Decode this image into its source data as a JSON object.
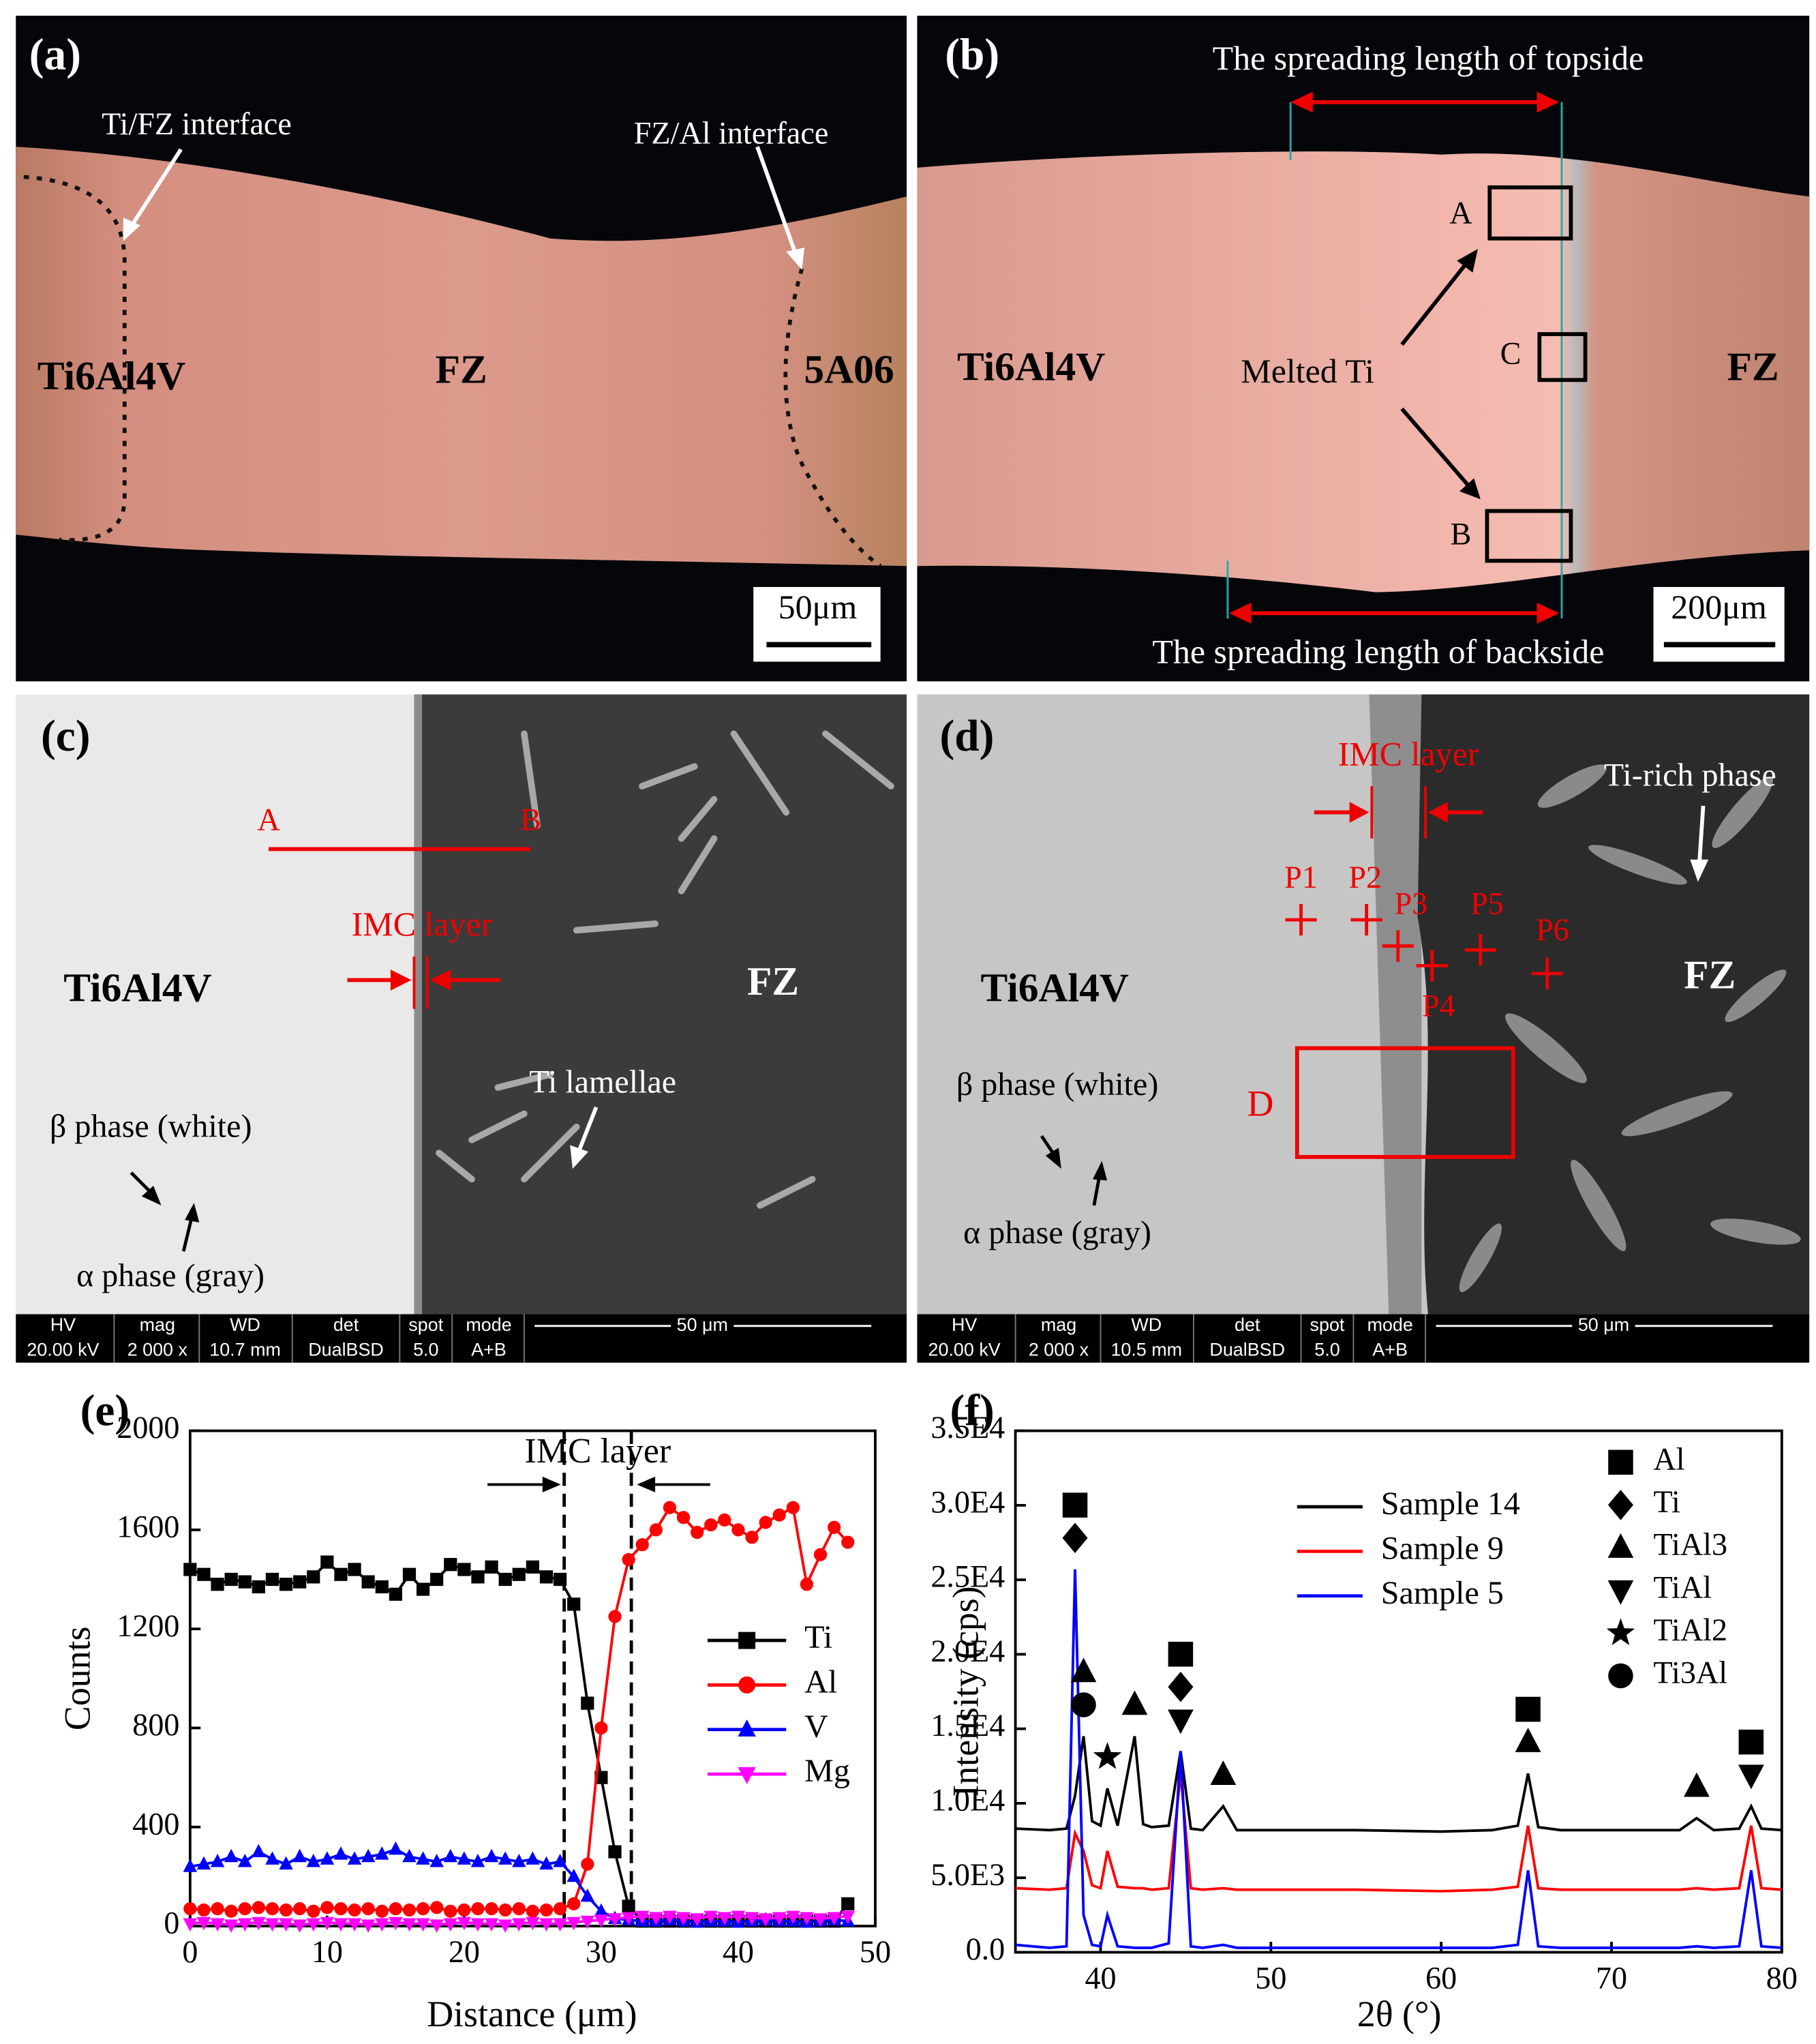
{
  "panels": {
    "a": {
      "label": "(a)",
      "annotations": [
        "Ti/FZ interface",
        "FZ/Al interface",
        "Ti6Al4V",
        "FZ",
        "5A06"
      ],
      "scale_bar": "50μm"
    },
    "b": {
      "label": "(b)",
      "annotations": [
        "The spreading length of topside",
        "A",
        "Melted Ti",
        "C",
        "B",
        "Ti6Al4V",
        "FZ",
        "The spreading length of backside"
      ],
      "scale_bar": "200μm"
    },
    "c": {
      "label": "(c)",
      "annotations": [
        "A",
        "B",
        "IMC layer",
        "Ti6Al4V",
        "FZ",
        "Ti lamellae",
        "β phase (white)",
        "α phase (gray)"
      ],
      "info_bar": {
        "headers": [
          "HV",
          "mag",
          "WD",
          "det",
          "spot",
          "mode"
        ],
        "values": [
          "20.00 kV",
          "2 000 x",
          "10.7 mm",
          "DualBSD",
          "5.0",
          "A+B"
        ],
        "scale": "50 μm"
      }
    },
    "d": {
      "label": "(d)",
      "annotations": [
        "IMC layer",
        "Ti-rich phase",
        "P1",
        "P2",
        "P3",
        "P5",
        "P6",
        "P4",
        "Ti6Al4V",
        "FZ",
        "D",
        "β phase (white)",
        "α phase (gray)"
      ],
      "info_bar": {
        "headers": [
          "HV",
          "mag",
          "WD",
          "det",
          "spot",
          "mode"
        ],
        "values": [
          "20.00 kV",
          "2 000 x",
          "10.5 mm",
          "DualBSD",
          "5.0",
          "A+B"
        ],
        "scale": "50 μm"
      }
    }
  },
  "chart_data": [
    {
      "type": "line",
      "panel_label": "(e)",
      "x_label": "Distance (μm)",
      "y_label": "Counts",
      "annotation": "IMC layer",
      "vlines": [
        27.3,
        32.2
      ],
      "xlim": [
        0,
        50
      ],
      "xticks": [
        0,
        10,
        20,
        30,
        40,
        50
      ],
      "ylim": [
        0,
        2000
      ],
      "yticks": [
        0,
        400,
        800,
        1200,
        1600,
        2000
      ],
      "grid": false,
      "x": [
        0,
        1,
        2,
        3,
        4,
        5,
        6,
        7,
        8,
        9,
        10,
        11,
        12,
        13,
        14,
        15,
        16,
        17,
        18,
        19,
        20,
        21,
        22,
        23,
        24,
        25,
        26,
        27,
        28,
        29,
        30,
        31,
        32,
        33,
        34,
        35,
        36,
        37,
        38,
        39,
        40,
        41,
        42,
        43,
        44,
        45,
        46,
        47,
        48
      ],
      "series": [
        {
          "name": "Ti",
          "color": "#000000",
          "marker": "square",
          "values": [
            1440,
            1420,
            1380,
            1400,
            1390,
            1370,
            1400,
            1380,
            1390,
            1410,
            1470,
            1420,
            1440,
            1390,
            1370,
            1340,
            1420,
            1360,
            1400,
            1460,
            1440,
            1410,
            1450,
            1400,
            1420,
            1450,
            1410,
            1400,
            1300,
            900,
            600,
            300,
            80,
            20,
            20,
            20,
            20,
            20,
            20,
            20,
            20,
            20,
            20,
            20,
            20,
            20,
            20,
            20,
            90
          ]
        },
        {
          "name": "Al",
          "color": "#ff0000",
          "marker": "circle",
          "values": [
            70,
            65,
            70,
            60,
            70,
            75,
            70,
            65,
            70,
            60,
            75,
            70,
            65,
            70,
            60,
            70,
            65,
            70,
            75,
            60,
            65,
            70,
            70,
            65,
            70,
            60,
            65,
            70,
            90,
            250,
            800,
            1250,
            1480,
            1540,
            1600,
            1690,
            1650,
            1590,
            1620,
            1640,
            1600,
            1570,
            1630,
            1660,
            1690,
            1380,
            1500,
            1610,
            1550
          ]
        },
        {
          "name": "V",
          "color": "#0000ff",
          "marker": "triangle",
          "values": [
            240,
            250,
            260,
            280,
            260,
            300,
            270,
            250,
            280,
            260,
            270,
            290,
            270,
            280,
            290,
            310,
            280,
            270,
            260,
            280,
            270,
            260,
            280,
            270,
            260,
            270,
            250,
            260,
            200,
            120,
            60,
            30,
            25,
            20,
            20,
            25,
            20,
            15,
            20,
            20,
            15,
            20,
            25,
            20,
            20,
            15,
            20,
            25,
            20
          ]
        },
        {
          "name": "Mg",
          "color": "#ff00ff",
          "marker": "triangle-down",
          "values": [
            10,
            15,
            10,
            5,
            10,
            15,
            10,
            10,
            5,
            10,
            15,
            10,
            10,
            5,
            10,
            15,
            10,
            10,
            5,
            10,
            15,
            10,
            10,
            5,
            10,
            15,
            10,
            10,
            15,
            20,
            25,
            30,
            35,
            40,
            35,
            40,
            35,
            30,
            40,
            35,
            40,
            35,
            30,
            35,
            40,
            35,
            30,
            35,
            40
          ]
        }
      ]
    },
    {
      "type": "line",
      "panel_label": "(f)",
      "x_label": "2θ (°)",
      "y_label": "Intensity (cps)",
      "xlim": [
        35,
        80
      ],
      "xticks": [
        40,
        50,
        60,
        70,
        80
      ],
      "ylim": [
        0,
        35000
      ],
      "yticks": [
        {
          "value": 0,
          "label": "0.0"
        },
        {
          "value": 5000,
          "label": "5.0E3"
        },
        {
          "value": 10000,
          "label": "1.0E4"
        },
        {
          "value": 15000,
          "label": "1.5E4"
        },
        {
          "value": 20000,
          "label": "2.0E4"
        },
        {
          "value": 25000,
          "label": "2.5E4"
        },
        {
          "value": 30000,
          "label": "3.0E4"
        },
        {
          "value": 35000,
          "label": "3.5E4"
        }
      ],
      "grid": false,
      "x": [
        35,
        37,
        38,
        38.5,
        39,
        39.5,
        40,
        40.4,
        41,
        42,
        42.5,
        43,
        44,
        44.7,
        45.3,
        46,
        47.2,
        48,
        50,
        55,
        60,
        63,
        64.5,
        65.1,
        65.7,
        67,
        70,
        74,
        75,
        76,
        77.5,
        78.2,
        78.8,
        80
      ],
      "series": [
        {
          "name": "Sample 14",
          "color": "#000000",
          "values": [
            8300,
            8200,
            8300,
            10500,
            14500,
            8800,
            8500,
            11000,
            8500,
            14500,
            8600,
            8400,
            8500,
            13500,
            8300,
            8200,
            9800,
            8200,
            8200,
            8200,
            8100,
            8200,
            8500,
            12000,
            8400,
            8200,
            8200,
            8200,
            9000,
            8200,
            8300,
            9800,
            8300,
            8200
          ]
        },
        {
          "name": "Sample 9",
          "color": "#ff0000",
          "values": [
            4300,
            4200,
            4300,
            8000,
            6800,
            4500,
            4300,
            6800,
            4400,
            4300,
            4300,
            4200,
            4300,
            12000,
            4300,
            4200,
            4300,
            4200,
            4200,
            4200,
            4100,
            4200,
            4400,
            8500,
            4300,
            4200,
            4200,
            4200,
            4300,
            4200,
            4300,
            8500,
            4300,
            4200
          ]
        },
        {
          "name": "Sample 5",
          "color": "#0000ff",
          "values": [
            500,
            300,
            400,
            25700,
            2500,
            500,
            400,
            2500,
            400,
            300,
            300,
            300,
            600,
            13500,
            400,
            300,
            500,
            300,
            300,
            300,
            300,
            300,
            500,
            5500,
            400,
            300,
            300,
            300,
            400,
            300,
            400,
            5500,
            400,
            300
          ]
        }
      ],
      "phases": [
        {
          "name": "Al",
          "symbol": "square"
        },
        {
          "name": "Ti",
          "symbol": "diamond"
        },
        {
          "name": "TiAl3",
          "symbol": "triangle"
        },
        {
          "name": "TiAl",
          "symbol": "triangle-down"
        },
        {
          "name": "TiAl2",
          "symbol": "star"
        },
        {
          "name": "Ti3Al",
          "symbol": "circle"
        }
      ],
      "peak_markers": [
        {
          "x": 38.5,
          "phases": [
            "Al",
            "Ti"
          ]
        },
        {
          "x": 39,
          "phases": [
            "TiAl3",
            "Ti3Al"
          ]
        },
        {
          "x": 40.4,
          "phases": [
            "TiAl2"
          ]
        },
        {
          "x": 42,
          "phases": [
            "TiAl3"
          ]
        },
        {
          "x": 44.7,
          "phases": [
            "Al",
            "Ti",
            "TiAl"
          ]
        },
        {
          "x": 47.2,
          "phases": [
            "TiAl3"
          ]
        },
        {
          "x": 65.1,
          "phases": [
            "Al",
            "TiAl3"
          ]
        },
        {
          "x": 75,
          "phases": [
            "TiAl3"
          ]
        },
        {
          "x": 78.2,
          "phases": [
            "Al",
            "TiAl"
          ]
        }
      ]
    }
  ]
}
